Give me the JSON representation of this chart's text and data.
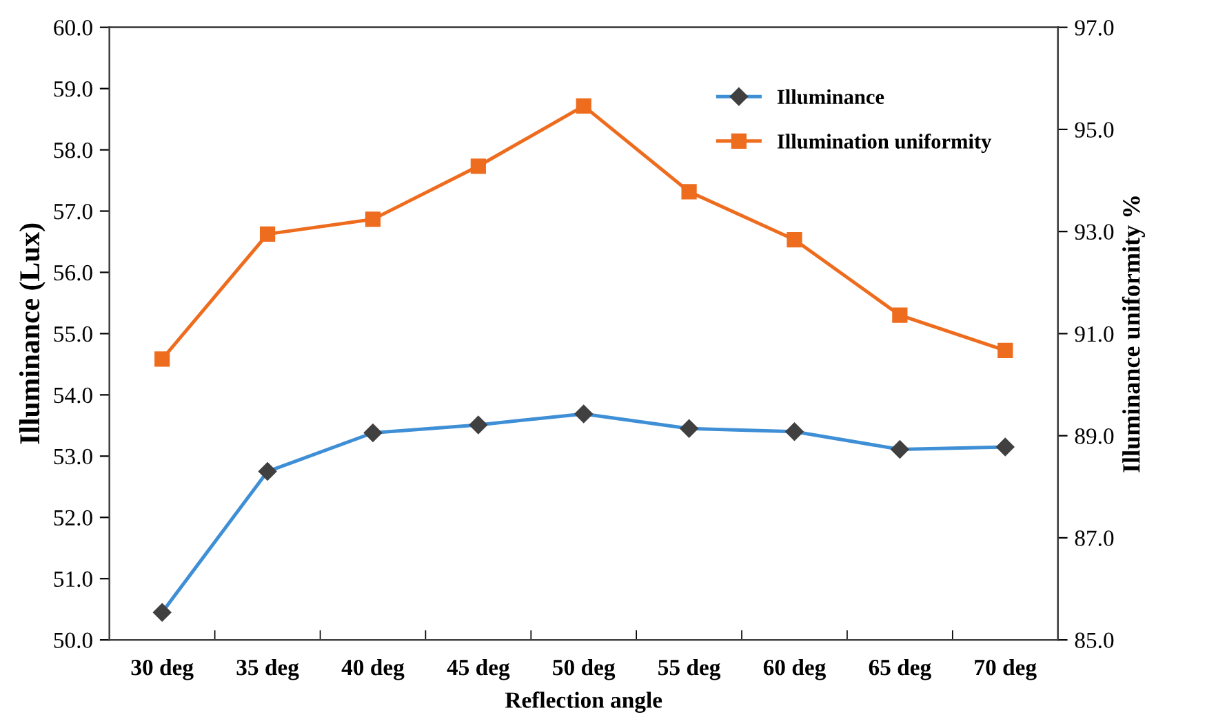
{
  "chart_data": {
    "type": "line",
    "xlabel": "Reflection angle",
    "ylabel": "Illuminance (Lux)",
    "y2label": "Illuminance uniformity %",
    "categories": [
      "30 deg",
      "35 deg",
      "40 deg",
      "45 deg",
      "50 deg",
      "55 deg",
      "60 deg",
      "65 deg",
      "70 deg"
    ],
    "series": [
      {
        "name": "Illuminance",
        "color": "#3f8fd6",
        "marker": "diamond",
        "values": [
          50.45,
          52.75,
          53.38,
          53.51,
          53.69,
          53.45,
          53.4,
          53.11,
          53.15
        ]
      },
      {
        "name": "Illumination uniformity",
        "color": "#ee6c1e",
        "marker": "square",
        "axis": "y2",
        "values": [
          90.5,
          92.95,
          93.24,
          94.28,
          95.46,
          93.78,
          92.84,
          91.36,
          90.67
        ]
      }
    ],
    "ylim": [
      50,
      60
    ],
    "yticks": [
      {
        "value": 50,
        "label": "50.0"
      },
      {
        "value": 51,
        "label": "51.0"
      },
      {
        "value": 52,
        "label": "52.0"
      },
      {
        "value": 53,
        "label": "53.0"
      },
      {
        "value": 54,
        "label": "54.0"
      },
      {
        "value": 55,
        "label": "55.0"
      },
      {
        "value": 56,
        "label": "56.0"
      },
      {
        "value": 57,
        "label": "57.0"
      },
      {
        "value": 58,
        "label": "58.0"
      },
      {
        "value": 59,
        "label": "59.0"
      },
      {
        "value": 60,
        "label": "60.0"
      }
    ],
    "y2lim": [
      85,
      97
    ],
    "y2ticks": [
      {
        "value": 85,
        "label": "85.0"
      },
      {
        "value": 87,
        "label": "87.0"
      },
      {
        "value": 89,
        "label": "89.0"
      },
      {
        "value": 91,
        "label": "91.0"
      },
      {
        "value": 93,
        "label": "93.0"
      },
      {
        "value": 95,
        "label": "95.0"
      },
      {
        "value": 97,
        "label": "97.0"
      }
    ],
    "grid": false,
    "legend": "top right",
    "line_style": "solid"
  }
}
